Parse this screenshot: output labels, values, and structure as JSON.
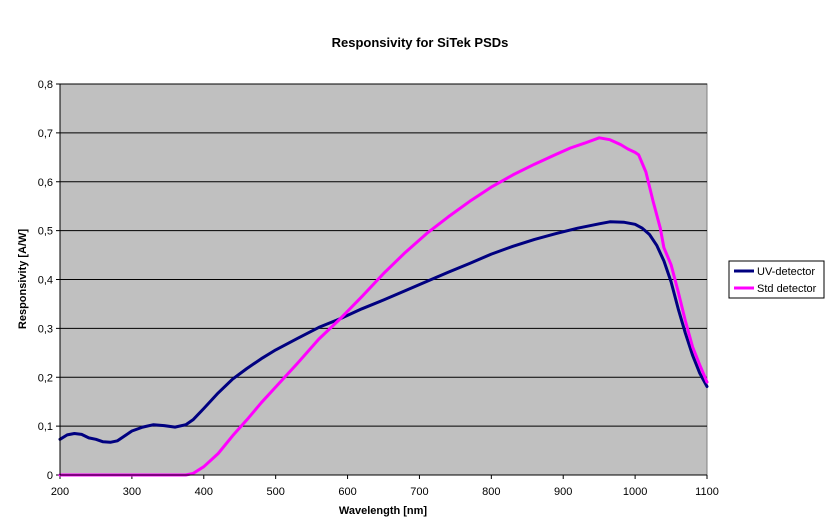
{
  "chart_data": {
    "type": "line",
    "title": "Responsivity for SiTek PSDs",
    "xlabel": "Wavelength [nm]",
    "ylabel": "Responsivity [A/W]",
    "xlim": [
      200,
      1100
    ],
    "ylim": [
      0,
      0.8
    ],
    "x_ticks": [
      "200",
      "300",
      "400",
      "500",
      "600",
      "700",
      "800",
      "900",
      "1000",
      "1100"
    ],
    "y_ticks": [
      "0",
      "0,1",
      "0,2",
      "0,3",
      "0,4",
      "0,5",
      "0,6",
      "0,7",
      "0,8"
    ],
    "grid": "horizontal",
    "legend_position": "right",
    "plot_background": "#C0C0C0",
    "series": [
      {
        "name": "UV-detector",
        "color": "#000080",
        "points": [
          [
            200,
            0.073
          ],
          [
            210,
            0.082
          ],
          [
            220,
            0.085
          ],
          [
            230,
            0.083
          ],
          [
            240,
            0.076
          ],
          [
            250,
            0.073
          ],
          [
            260,
            0.068
          ],
          [
            270,
            0.067
          ],
          [
            280,
            0.07
          ],
          [
            290,
            0.08
          ],
          [
            300,
            0.09
          ],
          [
            315,
            0.098
          ],
          [
            330,
            0.103
          ],
          [
            345,
            0.101
          ],
          [
            360,
            0.098
          ],
          [
            375,
            0.103
          ],
          [
            385,
            0.113
          ],
          [
            400,
            0.136
          ],
          [
            420,
            0.168
          ],
          [
            440,
            0.196
          ],
          [
            460,
            0.218
          ],
          [
            480,
            0.238
          ],
          [
            500,
            0.256
          ],
          [
            530,
            0.279
          ],
          [
            560,
            0.302
          ],
          [
            590,
            0.32
          ],
          [
            620,
            0.34
          ],
          [
            650,
            0.358
          ],
          [
            680,
            0.377
          ],
          [
            710,
            0.396
          ],
          [
            740,
            0.415
          ],
          [
            770,
            0.433
          ],
          [
            800,
            0.452
          ],
          [
            830,
            0.468
          ],
          [
            860,
            0.482
          ],
          [
            890,
            0.494
          ],
          [
            920,
            0.505
          ],
          [
            950,
            0.514
          ],
          [
            965,
            0.518
          ],
          [
            985,
            0.517
          ],
          [
            1000,
            0.513
          ],
          [
            1010,
            0.505
          ],
          [
            1020,
            0.492
          ],
          [
            1030,
            0.47
          ],
          [
            1040,
            0.438
          ],
          [
            1050,
            0.395
          ],
          [
            1060,
            0.34
          ],
          [
            1070,
            0.29
          ],
          [
            1080,
            0.245
          ],
          [
            1090,
            0.208
          ],
          [
            1100,
            0.181
          ]
        ]
      },
      {
        "name": "Std detector",
        "color": "#FF00FF",
        "points": [
          [
            200,
            0.0
          ],
          [
            250,
            0.0
          ],
          [
            300,
            0.0
          ],
          [
            350,
            0.0
          ],
          [
            375,
            0.0
          ],
          [
            385,
            0.003
          ],
          [
            400,
            0.017
          ],
          [
            420,
            0.044
          ],
          [
            440,
            0.08
          ],
          [
            460,
            0.113
          ],
          [
            480,
            0.148
          ],
          [
            500,
            0.18
          ],
          [
            530,
            0.228
          ],
          [
            560,
            0.278
          ],
          [
            590,
            0.32
          ],
          [
            620,
            0.365
          ],
          [
            650,
            0.412
          ],
          [
            680,
            0.455
          ],
          [
            710,
            0.494
          ],
          [
            740,
            0.528
          ],
          [
            770,
            0.56
          ],
          [
            800,
            0.589
          ],
          [
            830,
            0.614
          ],
          [
            860,
            0.636
          ],
          [
            890,
            0.656
          ],
          [
            910,
            0.669
          ],
          [
            930,
            0.679
          ],
          [
            950,
            0.69
          ],
          [
            965,
            0.686
          ],
          [
            980,
            0.676
          ],
          [
            990,
            0.667
          ],
          [
            1000,
            0.66
          ],
          [
            1005,
            0.655
          ],
          [
            1015,
            0.62
          ],
          [
            1025,
            0.56
          ],
          [
            1035,
            0.505
          ],
          [
            1040,
            0.465
          ],
          [
            1050,
            0.43
          ],
          [
            1060,
            0.375
          ],
          [
            1070,
            0.315
          ],
          [
            1080,
            0.262
          ],
          [
            1090,
            0.225
          ],
          [
            1100,
            0.19
          ]
        ]
      }
    ]
  }
}
